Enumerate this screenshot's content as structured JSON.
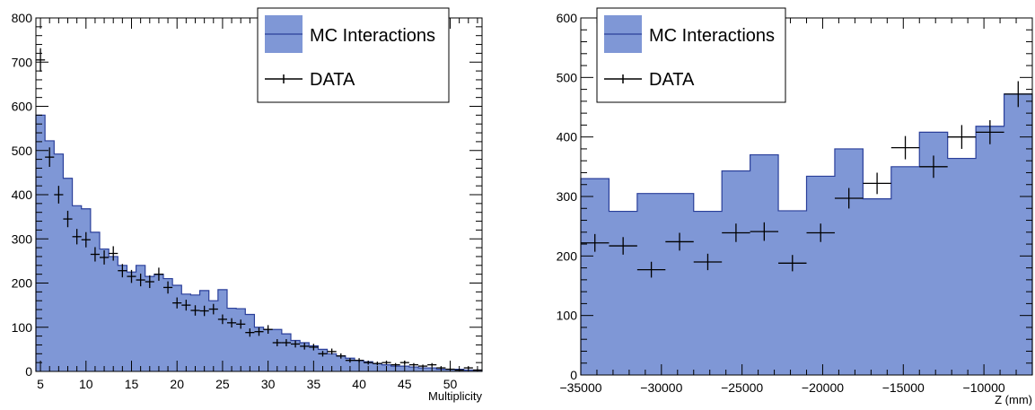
{
  "chart_data": [
    {
      "type": "area",
      "xlabel": "Multiplicity",
      "ylabel": "",
      "xlim": [
        4.5,
        53.5
      ],
      "ylim": [
        0,
        800
      ],
      "x_ticks": [
        5,
        10,
        15,
        20,
        25,
        30,
        35,
        40,
        45,
        50
      ],
      "y_ticks": [
        0,
        100,
        200,
        300,
        400,
        500,
        600,
        700,
        800
      ],
      "grid": false,
      "legend_position": "top-right",
      "colors": {
        "fill": "#7f97d6",
        "line": "#2a3f9a",
        "data": "#000000"
      },
      "series": [
        {
          "name": "MC Interactions",
          "type": "histogram",
          "bin_edges": [
            4.5,
            5.5,
            6.5,
            7.5,
            8.5,
            9.5,
            10.5,
            11.5,
            12.5,
            13.5,
            14.5,
            15.5,
            16.5,
            17.5,
            18.5,
            19.5,
            20.5,
            21.5,
            22.5,
            23.5,
            24.5,
            25.5,
            26.5,
            27.5,
            28.5,
            29.5,
            30.5,
            31.5,
            32.5,
            33.5,
            34.5,
            35.5,
            36.5,
            37.5,
            38.5,
            39.5,
            40.5,
            41.5,
            42.5,
            43.5,
            44.5,
            45.5,
            46.5,
            47.5,
            48.5,
            49.5,
            50.5,
            51.5,
            52.5,
            53.5
          ],
          "values": [
            580,
            522,
            492,
            437,
            375,
            368,
            315,
            277,
            260,
            240,
            225,
            240,
            215,
            220,
            210,
            195,
            175,
            173,
            183,
            160,
            185,
            143,
            142,
            129,
            100,
            95,
            95,
            85,
            70,
            65,
            58,
            50,
            40,
            35,
            30,
            25,
            22,
            18,
            15,
            12,
            12,
            10,
            8,
            8,
            5,
            5,
            5,
            3,
            3
          ]
        },
        {
          "name": "DATA",
          "type": "points",
          "x": [
            5,
            6,
            7,
            8,
            9,
            10,
            11,
            12,
            13,
            14,
            15,
            16,
            17,
            18,
            19,
            20,
            21,
            22,
            23,
            24,
            25,
            26,
            27,
            28,
            29,
            30,
            31,
            32,
            33,
            34,
            35,
            36,
            37,
            38,
            39,
            40,
            41,
            42,
            43,
            44,
            45,
            46,
            47,
            48,
            49,
            50,
            51,
            52,
            53
          ],
          "y": [
            705,
            485,
            400,
            345,
            305,
            298,
            265,
            258,
            267,
            228,
            215,
            207,
            203,
            220,
            190,
            155,
            150,
            138,
            137,
            141,
            118,
            110,
            107,
            88,
            90,
            95,
            65,
            65,
            62,
            57,
            55,
            40,
            45,
            35,
            25,
            25,
            20,
            18,
            20,
            15,
            20,
            15,
            12,
            15,
            8,
            5,
            3,
            8,
            3
          ]
        }
      ]
    },
    {
      "type": "area",
      "xlabel": "Z (mm)",
      "ylabel": "",
      "xlim": [
        -35000,
        -7000
      ],
      "ylim": [
        0,
        600
      ],
      "x_ticks": [
        -35000,
        -30000,
        -25000,
        -20000,
        -15000,
        -10000
      ],
      "y_ticks": [
        0,
        100,
        200,
        300,
        400,
        500,
        600
      ],
      "grid": false,
      "legend_position": "top-left",
      "colors": {
        "fill": "#7f97d6",
        "line": "#2a3f9a",
        "data": "#000000"
      },
      "series": [
        {
          "name": "MC Interactions",
          "type": "histogram",
          "bin_edges": [
            -35000,
            -33250,
            -31500,
            -29750,
            -28000,
            -26250,
            -24500,
            -22750,
            -21000,
            -19250,
            -17500,
            -15750,
            -14000,
            -12250,
            -10500,
            -8750,
            -7000
          ],
          "values": [
            330,
            275,
            305,
            305,
            275,
            343,
            370,
            276,
            334,
            380,
            296,
            350,
            408,
            364,
            418,
            472
          ]
        },
        {
          "name": "DATA",
          "type": "points",
          "x": [
            -34125,
            -32375,
            -30625,
            -28875,
            -27125,
            -25375,
            -23625,
            -21875,
            -20125,
            -18375,
            -16625,
            -14875,
            -13125,
            -11375,
            -9625,
            -7875
          ],
          "y": [
            222,
            217,
            177,
            224,
            190,
            239,
            241,
            188,
            239,
            297,
            322,
            382,
            350,
            400,
            408,
            472
          ]
        }
      ]
    }
  ],
  "legend": {
    "mc_label": "MC Interactions",
    "data_label": "DATA"
  }
}
